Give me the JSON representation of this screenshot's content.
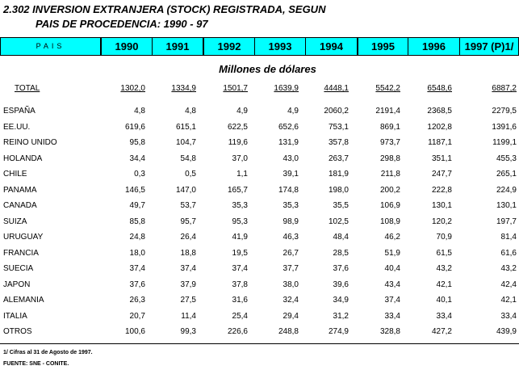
{
  "title": {
    "line1": "2.302 INVERSION EXTRANJERA (STOCK) REGISTRADA, SEGUN",
    "line2": "PAIS DE PROCEDENCIA: 1990 - 97"
  },
  "header": {
    "pais": "PAIS",
    "years": [
      "1990",
      "1991",
      "1992",
      "1993",
      "1994",
      "1995",
      "1996",
      "1997 (P)1/"
    ]
  },
  "header_color": "#00ffff",
  "units": "Millones de dólares",
  "total": {
    "label": "TOTAL",
    "values": [
      "1302,0",
      "1334,9",
      "1501,7",
      "1639,9",
      "4448,1",
      "5542,2",
      "6548,6",
      "6887,2"
    ]
  },
  "rows": [
    {
      "country": "ESPAÑA",
      "values": [
        "4,8",
        "4,8",
        "4,9",
        "4,9",
        "2060,2",
        "2191,4",
        "2368,5",
        "2279,5"
      ]
    },
    {
      "country": "EE.UU.",
      "values": [
        "619,6",
        "615,1",
        "622,5",
        "652,6",
        "753,1",
        "869,1",
        "1202,8",
        "1391,6"
      ]
    },
    {
      "country": "REINO UNIDO",
      "values": [
        "95,8",
        "104,7",
        "119,6",
        "131,9",
        "357,8",
        "973,7",
        "1187,1",
        "1199,1"
      ]
    },
    {
      "country": "HOLANDA",
      "values": [
        "34,4",
        "54,8",
        "37,0",
        "43,0",
        "263,7",
        "298,8",
        "351,1",
        "455,3"
      ]
    },
    {
      "country": "CHILE",
      "values": [
        "0,3",
        "0,5",
        "1,1",
        "39,1",
        "181,9",
        "211,8",
        "247,7",
        "265,1"
      ]
    },
    {
      "country": "PANAMA",
      "values": [
        "146,5",
        "147,0",
        "165,7",
        "174,8",
        "198,0",
        "200,2",
        "222,8",
        "224,9"
      ]
    },
    {
      "country": "CANADA",
      "values": [
        "49,7",
        "53,7",
        "35,3",
        "35,3",
        "35,5",
        "106,9",
        "130,1",
        "130,1"
      ]
    },
    {
      "country": "SUIZA",
      "values": [
        "85,8",
        "95,7",
        "95,3",
        "98,9",
        "102,5",
        "108,9",
        "120,2",
        "197,7"
      ]
    },
    {
      "country": "URUGUAY",
      "values": [
        "24,8",
        "26,4",
        "41,9",
        "46,3",
        "48,4",
        "46,2",
        "70,9",
        "81,4"
      ]
    },
    {
      "country": "FRANCIA",
      "values": [
        "18,0",
        "18,8",
        "19,5",
        "26,7",
        "28,5",
        "51,9",
        "61,5",
        "61,6"
      ]
    },
    {
      "country": "SUECIA",
      "values": [
        "37,4",
        "37,4",
        "37,4",
        "37,7",
        "37,6",
        "40,4",
        "43,2",
        "43,2"
      ]
    },
    {
      "country": "JAPON",
      "values": [
        "37,6",
        "37,9",
        "37,8",
        "38,0",
        "39,6",
        "43,4",
        "42,1",
        "42,4"
      ]
    },
    {
      "country": "ALEMANIA",
      "values": [
        "26,3",
        "27,5",
        "31,6",
        "32,4",
        "34,9",
        "37,4",
        "40,1",
        "42,1"
      ]
    },
    {
      "country": "ITALIA",
      "values": [
        "20,7",
        "11,4",
        "25,4",
        "29,4",
        "31,2",
        "33,4",
        "33,4",
        "33,4"
      ]
    },
    {
      "country": "OTROS",
      "values": [
        "100,6",
        "99,3",
        "226,6",
        "248,8",
        "274,9",
        "328,8",
        "427,2",
        "439,9"
      ]
    }
  ],
  "footnotes": [
    "1/ Cifras al 31 de Agosto de 1997.",
    "FUENTE: SNE - CONITE."
  ]
}
